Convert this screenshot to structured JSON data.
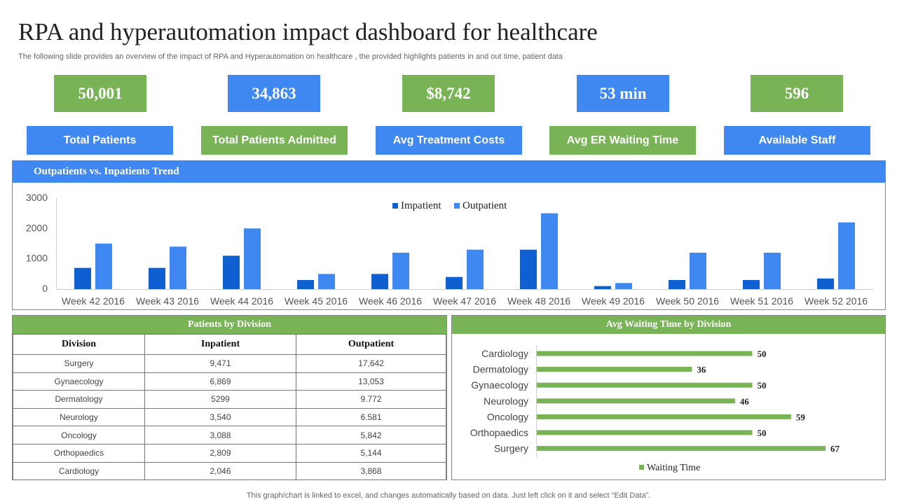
{
  "header": {
    "title": "RPA and hyperautomation impact dashboard for healthcare",
    "subtitle": "The following slide provides an overview of the impact of RPA and Hyperautomation  on healthcare , the provided highlights patients in and out time, patient data"
  },
  "kpis": [
    {
      "value": "50,001",
      "label": "Total Patients",
      "value_color": "#78b456",
      "label_color": "#3f88f2"
    },
    {
      "value": "34,863",
      "label": "Total Patients Admitted",
      "value_color": "#3f88f2",
      "label_color": "#78b456"
    },
    {
      "value": "$8,742",
      "label": "Avg Treatment Costs",
      "value_color": "#78b456",
      "label_color": "#3f88f2"
    },
    {
      "value": "53 min",
      "label": "Avg ER Waiting Time",
      "value_color": "#3f88f2",
      "label_color": "#78b456"
    },
    {
      "value": "596",
      "label": "Available Staff",
      "value_color": "#78b456",
      "label_color": "#3f88f2"
    }
  ],
  "trend_panel": {
    "title": "Outpatients  vs. Inpatients Trend"
  },
  "division_table": {
    "title": "Patients by Division",
    "headers": [
      "Division",
      "Inpatient",
      "Outpatient"
    ],
    "rows": [
      [
        "Surgery",
        "9,471",
        "17,642"
      ],
      [
        "Gynaecology",
        "6,869",
        "13,053"
      ],
      [
        "Dermatology",
        "5299",
        "9.772"
      ],
      [
        "Neurology",
        "3,540",
        "6.581"
      ],
      [
        "Oncology",
        "3,088",
        "5,842"
      ],
      [
        "Orthopaedics",
        "2,809",
        "5,144"
      ],
      [
        "Cardiology",
        "2,046",
        "3,868"
      ]
    ]
  },
  "wait_panel": {
    "title": "Avg Waiting Time by Division"
  },
  "footer": {
    "note": "This graph/chart is linked to excel,  and changes automatically based on data. Just left click on it and select “Edit Data”."
  },
  "colors": {
    "green": "#78b456",
    "blue": "#3f88f2",
    "dark_blue": "#0f5fd0"
  },
  "chart_data": [
    {
      "type": "bar",
      "categories": [
        "Week 42 2016",
        "Week 43 2016",
        "Week 44 2016",
        "Week 45 2016",
        "Week 46 2016",
        "Week 47 2016",
        "Week 48 2016",
        "Week 49 2016",
        "Week 50 2016",
        "Week 51 2016",
        "Week 52 2016"
      ],
      "series": [
        {
          "name": "Impatient",
          "color": "#0f5fd0",
          "values": [
            700,
            700,
            1100,
            300,
            500,
            400,
            1300,
            100,
            300,
            300,
            350
          ]
        },
        {
          "name": "Outpatient",
          "color": "#3f88f2",
          "values": [
            1500,
            1400,
            2000,
            500,
            1200,
            1300,
            2500,
            200,
            1200,
            1200,
            2200
          ]
        }
      ],
      "yticks": [
        0,
        1000,
        2000,
        3000
      ],
      "ylim": [
        0,
        3000
      ],
      "legend": "top-center",
      "grid": false
    },
    {
      "type": "bar",
      "orientation": "horizontal",
      "categories": [
        "Cardiology",
        "Dermatology",
        "Gynaecology",
        "Neurology",
        "Oncology",
        "Orthopaedics",
        "Surgery"
      ],
      "series": [
        {
          "name": "Waiting Time",
          "color": "#78b456",
          "values": [
            50,
            36,
            50,
            46,
            59,
            50,
            67
          ]
        }
      ],
      "legend": "bottom-center",
      "grid": false
    }
  ]
}
